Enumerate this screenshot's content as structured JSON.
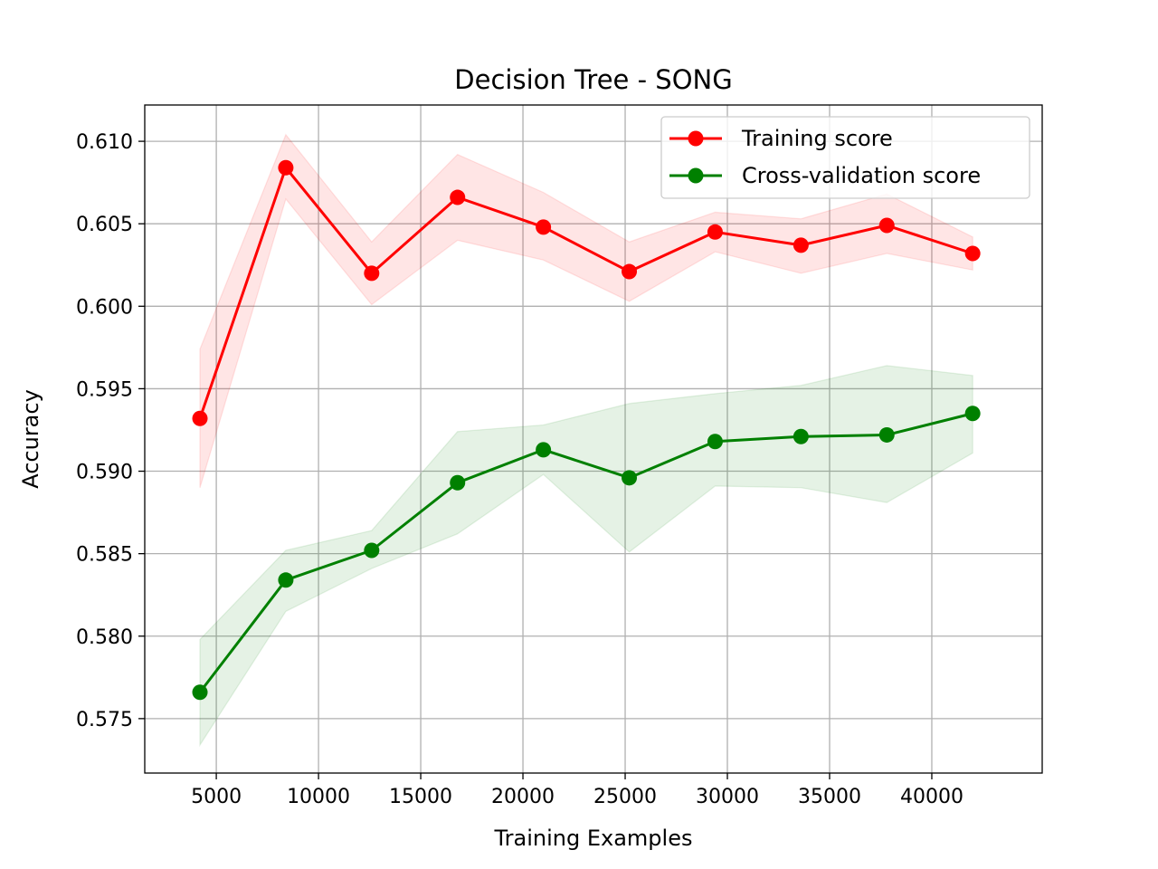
{
  "chart_data": {
    "type": "line",
    "title": "Decision Tree - SONG",
    "xlabel": "Training Examples",
    "ylabel": "Accuracy",
    "xlim": [
      1500,
      45400
    ],
    "ylim": [
      0.5717,
      0.6122
    ],
    "xticks": [
      5000,
      10000,
      15000,
      20000,
      25000,
      30000,
      35000,
      40000
    ],
    "xtick_labels": [
      "5000",
      "10000",
      "15000",
      "20000",
      "25000",
      "30000",
      "35000",
      "40000"
    ],
    "yticks": [
      0.575,
      0.58,
      0.585,
      0.59,
      0.595,
      0.6,
      0.605,
      0.61
    ],
    "ytick_labels": [
      "0.575",
      "0.580",
      "0.585",
      "0.590",
      "0.595",
      "0.600",
      "0.605",
      "0.610"
    ],
    "grid": true,
    "legend_position": "top-right",
    "x": [
      4200,
      8400,
      12600,
      16800,
      21000,
      25200,
      29400,
      33600,
      37800,
      42000
    ],
    "series": [
      {
        "name": "Training score",
        "color": "#ff0000",
        "values": [
          0.5932,
          0.6084,
          0.602,
          0.6066,
          0.6048,
          0.6021,
          0.6045,
          0.6037,
          0.6049,
          0.6032
        ],
        "band_upper": [
          0.5974,
          0.6104,
          0.6039,
          0.6092,
          0.6069,
          0.6039,
          0.6057,
          0.6053,
          0.6068,
          0.6042
        ],
        "band_lower": [
          0.589,
          0.6065,
          0.6001,
          0.604,
          0.6028,
          0.6003,
          0.6033,
          0.602,
          0.6032,
          0.6022
        ]
      },
      {
        "name": "Cross-validation score",
        "color": "#008000",
        "values": [
          0.5766,
          0.5834,
          0.5852,
          0.5893,
          0.5913,
          0.5896,
          0.5918,
          0.5921,
          0.5922,
          0.5935
        ],
        "band_upper": [
          0.5798,
          0.5852,
          0.5864,
          0.5924,
          0.5928,
          0.5941,
          0.5947,
          0.5952,
          0.5964,
          0.5958
        ],
        "band_lower": [
          0.5734,
          0.5815,
          0.5841,
          0.5862,
          0.5898,
          0.5851,
          0.5891,
          0.589,
          0.5881,
          0.5911
        ]
      }
    ]
  }
}
